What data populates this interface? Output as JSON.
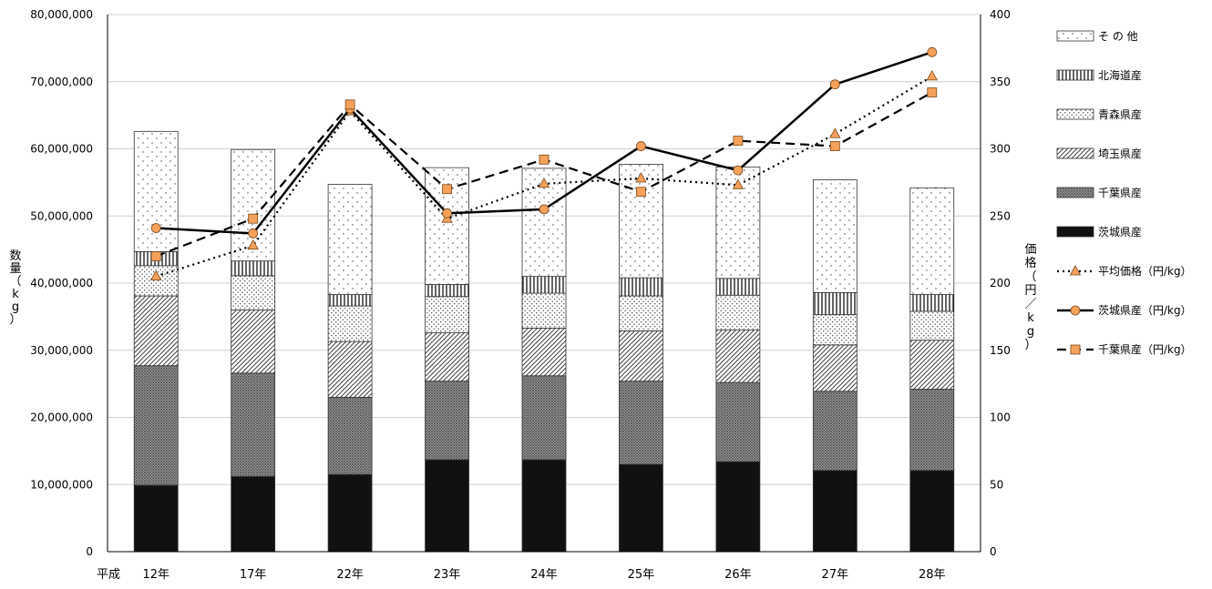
{
  "chart_data": {
    "type": "bar",
    "stacked": true,
    "categories": [
      "12年",
      "17年",
      "22年",
      "23年",
      "24年",
      "25年",
      "26年",
      "27年",
      "28年"
    ],
    "category_prefix": "平成",
    "ylabel": "数量（kg）",
    "y2label": "価格（円／kg）",
    "ylim": [
      0,
      80000000
    ],
    "y2lim": [
      0,
      400
    ],
    "yticks": [
      "0",
      "10,000,000",
      "20,000,000",
      "30,000,000",
      "40,000,000",
      "50,000,000",
      "60,000,000",
      "70,000,000",
      "80,000,000"
    ],
    "y2ticks": [
      "0",
      "50",
      "100",
      "150",
      "200",
      "250",
      "300",
      "350",
      "400"
    ],
    "grid": true,
    "legend_position": "right",
    "bar_series": [
      {
        "name": "茨城県産",
        "pattern": "solid",
        "values": [
          9900000,
          11200000,
          11500000,
          13700000,
          13700000,
          13000000,
          13400000,
          12100000,
          12100000
        ]
      },
      {
        "name": "千葉県産",
        "pattern": "crosshatch",
        "values": [
          17800000,
          15400000,
          11500000,
          11700000,
          12500000,
          12400000,
          11800000,
          11800000,
          12100000
        ]
      },
      {
        "name": "埼玉県産",
        "pattern": "diagonal",
        "values": [
          10400000,
          9400000,
          8300000,
          7200000,
          7100000,
          7500000,
          7800000,
          6900000,
          7300000
        ]
      },
      {
        "name": "青森県産",
        "pattern": "dots-dense",
        "values": [
          4500000,
          5100000,
          5300000,
          5400000,
          5200000,
          5200000,
          5200000,
          4500000,
          4300000
        ]
      },
      {
        "name": "北海道産",
        "pattern": "vertical",
        "values": [
          2100000,
          2200000,
          1700000,
          1800000,
          2500000,
          2700000,
          2500000,
          3300000,
          2500000
        ]
      },
      {
        "name": "そ の 他",
        "pattern": "dots-sparse",
        "values": [
          17900000,
          16600000,
          16400000,
          17400000,
          16100000,
          16900000,
          16600000,
          16800000,
          15900000
        ]
      }
    ],
    "line_series": [
      {
        "name": "平均価格（円/kg）",
        "style": "dotted",
        "marker": "triangle",
        "color": "#f5a15a",
        "values": [
          205,
          228,
          328,
          248,
          274,
          278,
          273,
          311,
          354
        ]
      },
      {
        "name": "茨城県産（円/kg）",
        "style": "solid",
        "marker": "circle",
        "color": "#f5a15a",
        "values": [
          241,
          237,
          330,
          252,
          255,
          302,
          284,
          348,
          372
        ]
      },
      {
        "name": "千葉県産（円/kg）",
        "style": "dashed",
        "marker": "square",
        "color": "#f5a15a",
        "values": [
          220,
          248,
          333,
          270,
          292,
          268,
          306,
          302,
          342
        ]
      }
    ],
    "legend_order": [
      "そ の 他",
      "北海道産",
      "青森県産",
      "埼玉県産",
      "千葉県産",
      "茨城県産",
      "平均価格（円/kg）",
      "茨城県産（円/kg）",
      "千葉県産（円/kg）"
    ]
  }
}
